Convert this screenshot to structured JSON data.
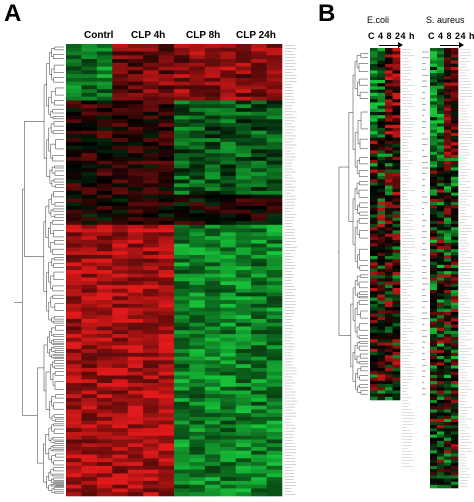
{
  "panel_a": {
    "letter": "A",
    "columns": [
      "Contrl",
      "CLP 4h",
      "CLP 8h",
      "CLP 24h"
    ]
  },
  "panel_b": {
    "letter": "B",
    "left_title": "E.coli",
    "right_title": "S. aureus",
    "left_timepoints": "C 4 8 24 h",
    "right_timepoints": "C 4 8 24 h"
  },
  "colors": {
    "up": "#e01a1a",
    "down": "#18c43a",
    "neutral": "#000000",
    "dendrogram": "#555555"
  }
}
